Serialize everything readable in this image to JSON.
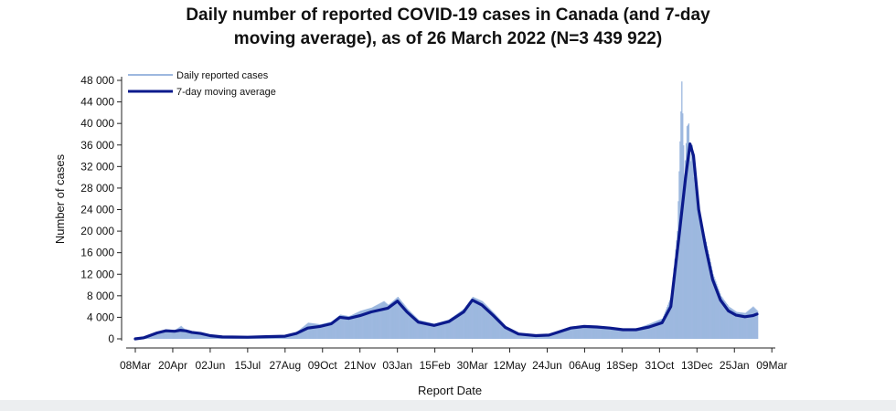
{
  "chart_data": {
    "type": "bar",
    "title_line1": "Daily number of reported COVID-19 cases in Canada (and 7-day",
    "title_line2": "moving average), as of 26 March 2022 (N=3 439 922)",
    "xlabel": "Report Date",
    "ylabel": "Number of cases",
    "ylim": [
      0,
      48000
    ],
    "y_ticks": [
      "0",
      "4 000",
      "8 000",
      "12 000",
      "16 000",
      "20 000",
      "24 000",
      "28 000",
      "32 000",
      "36 000",
      "40 000",
      "44 000",
      "48 000"
    ],
    "x_tick_labels": [
      "08Mar",
      "20Apr",
      "02Jun",
      "15Jul",
      "27Aug",
      "09Oct",
      "21Nov",
      "03Jan",
      "15Feb",
      "30Mar",
      "12May",
      "24Jun",
      "06Aug",
      "18Sep",
      "31Oct",
      "13Dec",
      "25Jan",
      "09Mar"
    ],
    "legend": {
      "position": "top-left",
      "bars_label": "Daily reported cases",
      "line_label": "7-day moving average"
    },
    "grid": false,
    "colors": {
      "bars": "#9db8df",
      "line": "#0b1a8c"
    },
    "moving_average": [
      {
        "day": 0,
        "value": 0
      },
      {
        "day": 10,
        "value": 200
      },
      {
        "day": 25,
        "value": 1100
      },
      {
        "day": 35,
        "value": 1500
      },
      {
        "day": 45,
        "value": 1400
      },
      {
        "day": 52,
        "value": 1600
      },
      {
        "day": 58,
        "value": 1500
      },
      {
        "day": 65,
        "value": 1200
      },
      {
        "day": 75,
        "value": 1000
      },
      {
        "day": 86,
        "value": 600
      },
      {
        "day": 100,
        "value": 350
      },
      {
        "day": 129,
        "value": 300
      },
      {
        "day": 150,
        "value": 400
      },
      {
        "day": 172,
        "value": 500
      },
      {
        "day": 185,
        "value": 1000
      },
      {
        "day": 198,
        "value": 2000
      },
      {
        "day": 212,
        "value": 2300
      },
      {
        "day": 225,
        "value": 2800
      },
      {
        "day": 235,
        "value": 4000
      },
      {
        "day": 245,
        "value": 3800
      },
      {
        "day": 258,
        "value": 4300
      },
      {
        "day": 271,
        "value": 5000
      },
      {
        "day": 290,
        "value": 5700
      },
      {
        "day": 301,
        "value": 7000
      },
      {
        "day": 312,
        "value": 5000
      },
      {
        "day": 325,
        "value": 3100
      },
      {
        "day": 343,
        "value": 2500
      },
      {
        "day": 360,
        "value": 3200
      },
      {
        "day": 377,
        "value": 5000
      },
      {
        "day": 387,
        "value": 7200
      },
      {
        "day": 398,
        "value": 6300
      },
      {
        "day": 412,
        "value": 4200
      },
      {
        "day": 425,
        "value": 2100
      },
      {
        "day": 440,
        "value": 900
      },
      {
        "day": 460,
        "value": 600
      },
      {
        "day": 475,
        "value": 700
      },
      {
        "day": 485,
        "value": 1200
      },
      {
        "day": 500,
        "value": 2000
      },
      {
        "day": 515,
        "value": 2300
      },
      {
        "day": 530,
        "value": 2200
      },
      {
        "day": 545,
        "value": 2000
      },
      {
        "day": 560,
        "value": 1700
      },
      {
        "day": 575,
        "value": 1700
      },
      {
        "day": 590,
        "value": 2200
      },
      {
        "day": 605,
        "value": 3000
      },
      {
        "day": 615,
        "value": 6000
      },
      {
        "day": 625,
        "value": 20000
      },
      {
        "day": 632,
        "value": 30000
      },
      {
        "day": 637,
        "value": 36200
      },
      {
        "day": 641,
        "value": 34000
      },
      {
        "day": 647,
        "value": 24000
      },
      {
        "day": 655,
        "value": 17000
      },
      {
        "day": 663,
        "value": 11000
      },
      {
        "day": 672,
        "value": 7200
      },
      {
        "day": 681,
        "value": 5200
      },
      {
        "day": 690,
        "value": 4400
      },
      {
        "day": 700,
        "value": 4100
      },
      {
        "day": 709,
        "value": 4300
      },
      {
        "day": 714,
        "value": 4600
      }
    ],
    "daily_cases": [
      {
        "day": 0,
        "value": 0
      },
      {
        "day": 12,
        "value": 400
      },
      {
        "day": 25,
        "value": 1200
      },
      {
        "day": 35,
        "value": 1800
      },
      {
        "day": 45,
        "value": 1600
      },
      {
        "day": 52,
        "value": 2400
      },
      {
        "day": 58,
        "value": 1500
      },
      {
        "day": 65,
        "value": 1400
      },
      {
        "day": 75,
        "value": 1100
      },
      {
        "day": 86,
        "value": 700
      },
      {
        "day": 100,
        "value": 400
      },
      {
        "day": 129,
        "value": 400
      },
      {
        "day": 150,
        "value": 500
      },
      {
        "day": 172,
        "value": 600
      },
      {
        "day": 185,
        "value": 1300
      },
      {
        "day": 198,
        "value": 3000
      },
      {
        "day": 212,
        "value": 2700
      },
      {
        "day": 225,
        "value": 3200
      },
      {
        "day": 235,
        "value": 4500
      },
      {
        "day": 245,
        "value": 4200
      },
      {
        "day": 258,
        "value": 5200
      },
      {
        "day": 271,
        "value": 5800
      },
      {
        "day": 285,
        "value": 7000
      },
      {
        "day": 290,
        "value": 6300
      },
      {
        "day": 301,
        "value": 7800
      },
      {
        "day": 312,
        "value": 5600
      },
      {
        "day": 325,
        "value": 3500
      },
      {
        "day": 343,
        "value": 2800
      },
      {
        "day": 360,
        "value": 3600
      },
      {
        "day": 377,
        "value": 5600
      },
      {
        "day": 387,
        "value": 7800
      },
      {
        "day": 398,
        "value": 7000
      },
      {
        "day": 412,
        "value": 4700
      },
      {
        "day": 425,
        "value": 2400
      },
      {
        "day": 440,
        "value": 1100
      },
      {
        "day": 460,
        "value": 700
      },
      {
        "day": 475,
        "value": 800
      },
      {
        "day": 485,
        "value": 1400
      },
      {
        "day": 500,
        "value": 2300
      },
      {
        "day": 515,
        "value": 2500
      },
      {
        "day": 530,
        "value": 2400
      },
      {
        "day": 545,
        "value": 2200
      },
      {
        "day": 560,
        "value": 1900
      },
      {
        "day": 575,
        "value": 1900
      },
      {
        "day": 590,
        "value": 2800
      },
      {
        "day": 605,
        "value": 3800
      },
      {
        "day": 615,
        "value": 8000
      },
      {
        "day": 622,
        "value": 20000
      },
      {
        "day": 627,
        "value": 47800
      },
      {
        "day": 630,
        "value": 30000
      },
      {
        "day": 633,
        "value": 39500
      },
      {
        "day": 635,
        "value": 40000
      },
      {
        "day": 637,
        "value": 33000
      },
      {
        "day": 639,
        "value": 36000
      },
      {
        "day": 641,
        "value": 30000
      },
      {
        "day": 644,
        "value": 26000
      },
      {
        "day": 647,
        "value": 22500
      },
      {
        "day": 655,
        "value": 18000
      },
      {
        "day": 663,
        "value": 12000
      },
      {
        "day": 672,
        "value": 8000
      },
      {
        "day": 681,
        "value": 6000
      },
      {
        "day": 690,
        "value": 5000
      },
      {
        "day": 700,
        "value": 4800
      },
      {
        "day": 709,
        "value": 6000
      },
      {
        "day": 714,
        "value": 5200
      }
    ]
  }
}
